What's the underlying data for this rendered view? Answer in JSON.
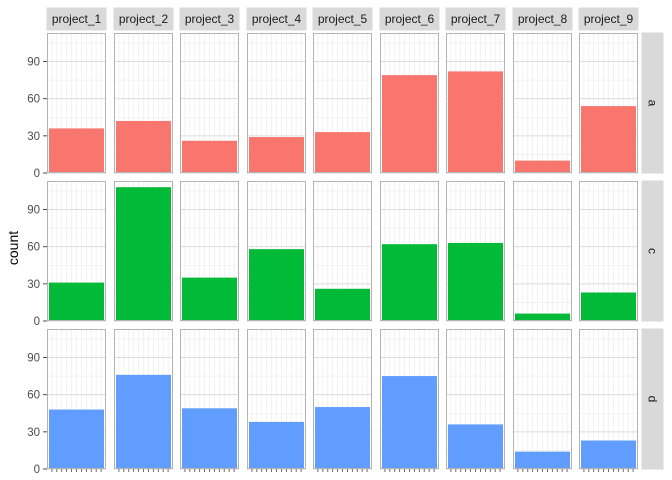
{
  "chart_data": {
    "type": "bar",
    "facet_layout": "grid",
    "ylabel": "count",
    "xlabel": "",
    "ylim": [
      0,
      113
    ],
    "y_ticks": [
      0,
      30,
      60,
      90
    ],
    "grid": true,
    "legend": "none",
    "columns": [
      "project_1",
      "project_2",
      "project_3",
      "project_4",
      "project_5",
      "project_6",
      "project_7",
      "project_8",
      "project_9"
    ],
    "rows": [
      {
        "label": "a",
        "color": "#F8766D",
        "values": [
          36,
          42,
          26,
          29,
          33,
          79,
          82,
          10,
          54
        ]
      },
      {
        "label": "c",
        "color": "#00BA38",
        "values": [
          31,
          108,
          35,
          58,
          26,
          62,
          63,
          6,
          23
        ]
      },
      {
        "label": "d",
        "color": "#619CFF",
        "values": [
          48,
          76,
          49,
          38,
          50,
          75,
          36,
          14,
          23
        ]
      }
    ]
  }
}
